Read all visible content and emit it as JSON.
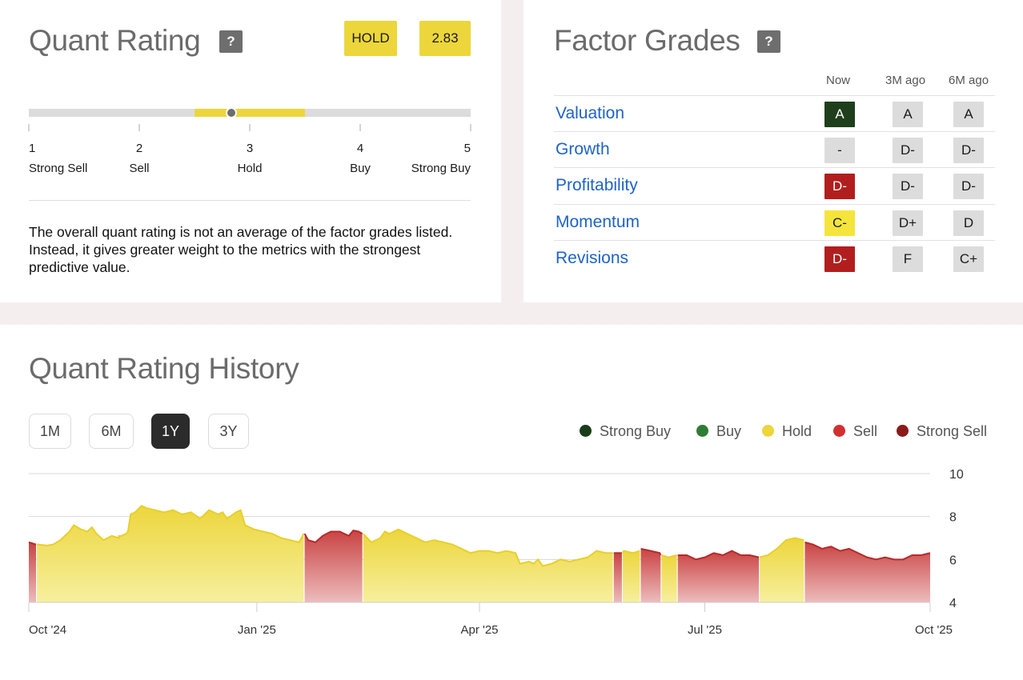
{
  "quant_rating": {
    "title": "Quant Rating",
    "help": "?",
    "rating_label": "HOLD",
    "score": "2.83",
    "score_value": 2.83,
    "scale": [
      {
        "num": "1",
        "label": "Strong Sell"
      },
      {
        "num": "2",
        "label": "Sell"
      },
      {
        "num": "3",
        "label": "Hold"
      },
      {
        "num": "4",
        "label": "Buy"
      },
      {
        "num": "5",
        "label": "Strong Buy"
      }
    ],
    "hold_band": [
      2.5,
      3.5
    ],
    "description": "The overall quant rating is not an average of the factor grades listed. Instead, it gives greater weight to the metrics with the strongest predictive value."
  },
  "factor_grades": {
    "title": "Factor Grades",
    "help": "?",
    "columns": [
      "Now",
      "3M ago",
      "6M ago"
    ],
    "rows": [
      {
        "name": "Valuation",
        "now": "A",
        "m3": "A",
        "m6": "A",
        "now_color": "#1f3f1c"
      },
      {
        "name": "Growth",
        "now": "-",
        "m3": "D-",
        "m6": "D-",
        "now_color": "#dcdcdc"
      },
      {
        "name": "Profitability",
        "now": "D-",
        "m3": "D-",
        "m6": "D-",
        "now_color": "#b21e1e"
      },
      {
        "name": "Momentum",
        "now": "C-",
        "m3": "D+",
        "m6": "D",
        "now_color": "#f5e43c"
      },
      {
        "name": "Revisions",
        "now": "D-",
        "m3": "F",
        "m6": "C+",
        "now_color": "#b21e1e"
      }
    ]
  },
  "history": {
    "title": "Quant Rating History",
    "ranges": [
      "1M",
      "6M",
      "1Y",
      "3Y"
    ],
    "active_range": "1Y",
    "legend": [
      {
        "label": "Strong Buy",
        "color": "#1a3d1a"
      },
      {
        "label": "Buy",
        "color": "#2e7d32"
      },
      {
        "label": "Hold",
        "color": "#ecd63c"
      },
      {
        "label": "Sell",
        "color": "#d32f2f"
      },
      {
        "label": "Strong Sell",
        "color": "#8b1a1a"
      }
    ]
  },
  "chart_data": {
    "type": "area",
    "x_ticks": [
      "Oct '24",
      "Jan '25",
      "Apr '25",
      "Jul '25",
      "Oct '25"
    ],
    "x_tick_pos": [
      0,
      0.253,
      0.5,
      0.75,
      1.0
    ],
    "y_ticks": [
      10,
      8,
      6,
      4
    ],
    "ylim": [
      4,
      10
    ],
    "grid": true,
    "series": [
      {
        "values": [
          [
            0,
            6.8,
            "S"
          ],
          [
            0.008,
            6.7,
            "S"
          ],
          [
            0.009,
            6.7,
            "H"
          ],
          [
            0.02,
            6.65,
            "H"
          ],
          [
            0.027,
            6.7,
            "H"
          ],
          [
            0.035,
            6.9,
            "H"
          ],
          [
            0.045,
            7.3,
            "H"
          ],
          [
            0.05,
            7.6,
            "H"
          ],
          [
            0.058,
            7.4,
            "H"
          ],
          [
            0.065,
            7.3,
            "H"
          ],
          [
            0.07,
            7.5,
            "H"
          ],
          [
            0.075,
            7.2,
            "H"
          ],
          [
            0.083,
            6.9,
            "H"
          ],
          [
            0.092,
            7.1,
            "H"
          ],
          [
            0.1,
            7.0,
            "H"
          ],
          [
            0.11,
            7.3,
            "H"
          ],
          [
            0.1,
            7.1,
            "H"
          ],
          [
            0.103,
            7.1,
            "H"
          ],
          [
            0.108,
            7.2,
            "H"
          ],
          [
            0.113,
            8.1,
            "H"
          ],
          [
            0.118,
            8.2,
            "H"
          ],
          [
            0.125,
            8.5,
            "H"
          ],
          [
            0.13,
            8.4,
            "H"
          ],
          [
            0.14,
            8.3,
            "H"
          ],
          [
            0.15,
            8.2,
            "H"
          ],
          [
            0.16,
            8.3,
            "H"
          ],
          [
            0.17,
            8.1,
            "H"
          ],
          [
            0.18,
            8.2,
            "H"
          ],
          [
            0.19,
            7.9,
            "H"
          ],
          [
            0.2,
            8.3,
            "H"
          ],
          [
            0.21,
            8.1,
            "H"
          ],
          [
            0.215,
            8.2,
            "H"
          ],
          [
            0.22,
            7.9,
            "H"
          ],
          [
            0.23,
            8.2,
            "H"
          ],
          [
            0.235,
            8.3,
            "H"
          ],
          [
            0.24,
            7.6,
            "H"
          ],
          [
            0.25,
            7.4,
            "H"
          ],
          [
            0.26,
            7.3,
            "H"
          ],
          [
            0.27,
            7.2,
            "H"
          ],
          [
            0.28,
            7.0,
            "H"
          ],
          [
            0.29,
            6.9,
            "H"
          ],
          [
            0.3,
            6.8,
            "H"
          ],
          [
            0.305,
            7.2,
            "H"
          ],
          [
            0.306,
            7.2,
            "S"
          ],
          [
            0.31,
            6.9,
            "S"
          ],
          [
            0.318,
            6.8,
            "S"
          ],
          [
            0.326,
            7.1,
            "S"
          ],
          [
            0.335,
            7.3,
            "S"
          ],
          [
            0.345,
            7.3,
            "S"
          ],
          [
            0.355,
            7.1,
            "S"
          ],
          [
            0.36,
            7.35,
            "S"
          ],
          [
            0.366,
            7.3,
            "S"
          ],
          [
            0.37,
            7.2,
            "S"
          ],
          [
            0.371,
            7.2,
            "H"
          ],
          [
            0.38,
            6.8,
            "H"
          ],
          [
            0.39,
            7.0,
            "H"
          ],
          [
            0.395,
            7.3,
            "H"
          ],
          [
            0.4,
            7.2,
            "H"
          ],
          [
            0.41,
            7.4,
            "H"
          ],
          [
            0.42,
            7.2,
            "H"
          ],
          [
            0.43,
            7.0,
            "H"
          ],
          [
            0.44,
            6.8,
            "H"
          ],
          [
            0.45,
            6.9,
            "H"
          ],
          [
            0.46,
            6.8,
            "H"
          ],
          [
            0.47,
            6.7,
            "H"
          ],
          [
            0.48,
            6.5,
            "H"
          ],
          [
            0.49,
            6.3,
            "H"
          ],
          [
            0.5,
            6.4,
            "H"
          ],
          [
            0.51,
            6.4,
            "H"
          ],
          [
            0.52,
            6.3,
            "H"
          ],
          [
            0.53,
            6.4,
            "H"
          ],
          [
            0.54,
            6.3,
            "H"
          ],
          [
            0.545,
            5.8,
            "H"
          ],
          [
            0.555,
            5.9,
            "H"
          ],
          [
            0.56,
            5.8,
            "H"
          ],
          [
            0.565,
            6.0,
            "H"
          ],
          [
            0.57,
            5.7,
            "H"
          ],
          [
            0.58,
            5.8,
            "H"
          ],
          [
            0.59,
            6.0,
            "H"
          ],
          [
            0.6,
            5.9,
            "H"
          ],
          [
            0.61,
            6.0,
            "H"
          ],
          [
            0.62,
            6.1,
            "H"
          ],
          [
            0.63,
            6.4,
            "H"
          ],
          [
            0.64,
            6.3,
            "H"
          ],
          [
            0.648,
            6.3,
            "H"
          ],
          [
            0.649,
            6.3,
            "S"
          ],
          [
            0.658,
            6.3,
            "S"
          ],
          [
            0.659,
            6.3,
            "H"
          ],
          [
            0.66,
            6.4,
            "H"
          ],
          [
            0.67,
            6.3,
            "H"
          ],
          [
            0.678,
            6.4,
            "H"
          ],
          [
            0.679,
            6.5,
            "S"
          ],
          [
            0.69,
            6.4,
            "S"
          ],
          [
            0.7,
            6.3,
            "S"
          ],
          [
            0.701,
            6.2,
            "S"
          ],
          [
            0.702,
            6.2,
            "H"
          ],
          [
            0.71,
            6.1,
            "H"
          ],
          [
            0.719,
            6.2,
            "H"
          ],
          [
            0.72,
            6.2,
            "S"
          ],
          [
            0.73,
            6.2,
            "S"
          ],
          [
            0.74,
            6.0,
            "S"
          ],
          [
            0.75,
            6.1,
            "S"
          ],
          [
            0.76,
            6.3,
            "S"
          ],
          [
            0.77,
            6.2,
            "S"
          ],
          [
            0.78,
            6.4,
            "S"
          ],
          [
            0.79,
            6.2,
            "S"
          ],
          [
            0.8,
            6.2,
            "S"
          ],
          [
            0.81,
            6.1,
            "S"
          ],
          [
            0.811,
            6.1,
            "H"
          ],
          [
            0.82,
            6.2,
            "H"
          ],
          [
            0.83,
            6.5,
            "H"
          ],
          [
            0.84,
            6.9,
            "H"
          ],
          [
            0.85,
            7.0,
            "H"
          ],
          [
            0.86,
            6.9,
            "H"
          ],
          [
            0.861,
            6.8,
            "S"
          ],
          [
            0.87,
            6.7,
            "S"
          ],
          [
            0.88,
            6.5,
            "S"
          ],
          [
            0.89,
            6.6,
            "S"
          ],
          [
            0.9,
            6.4,
            "S"
          ],
          [
            0.91,
            6.5,
            "S"
          ],
          [
            0.92,
            6.3,
            "S"
          ],
          [
            0.93,
            6.1,
            "S"
          ],
          [
            0.94,
            6.0,
            "S"
          ],
          [
            0.95,
            6.1,
            "S"
          ],
          [
            0.96,
            6.0,
            "S"
          ],
          [
            0.97,
            6.0,
            "S"
          ],
          [
            0.98,
            6.2,
            "S"
          ],
          [
            0.99,
            6.2,
            "S"
          ],
          [
            1.0,
            6.3,
            "S"
          ]
        ]
      }
    ]
  }
}
